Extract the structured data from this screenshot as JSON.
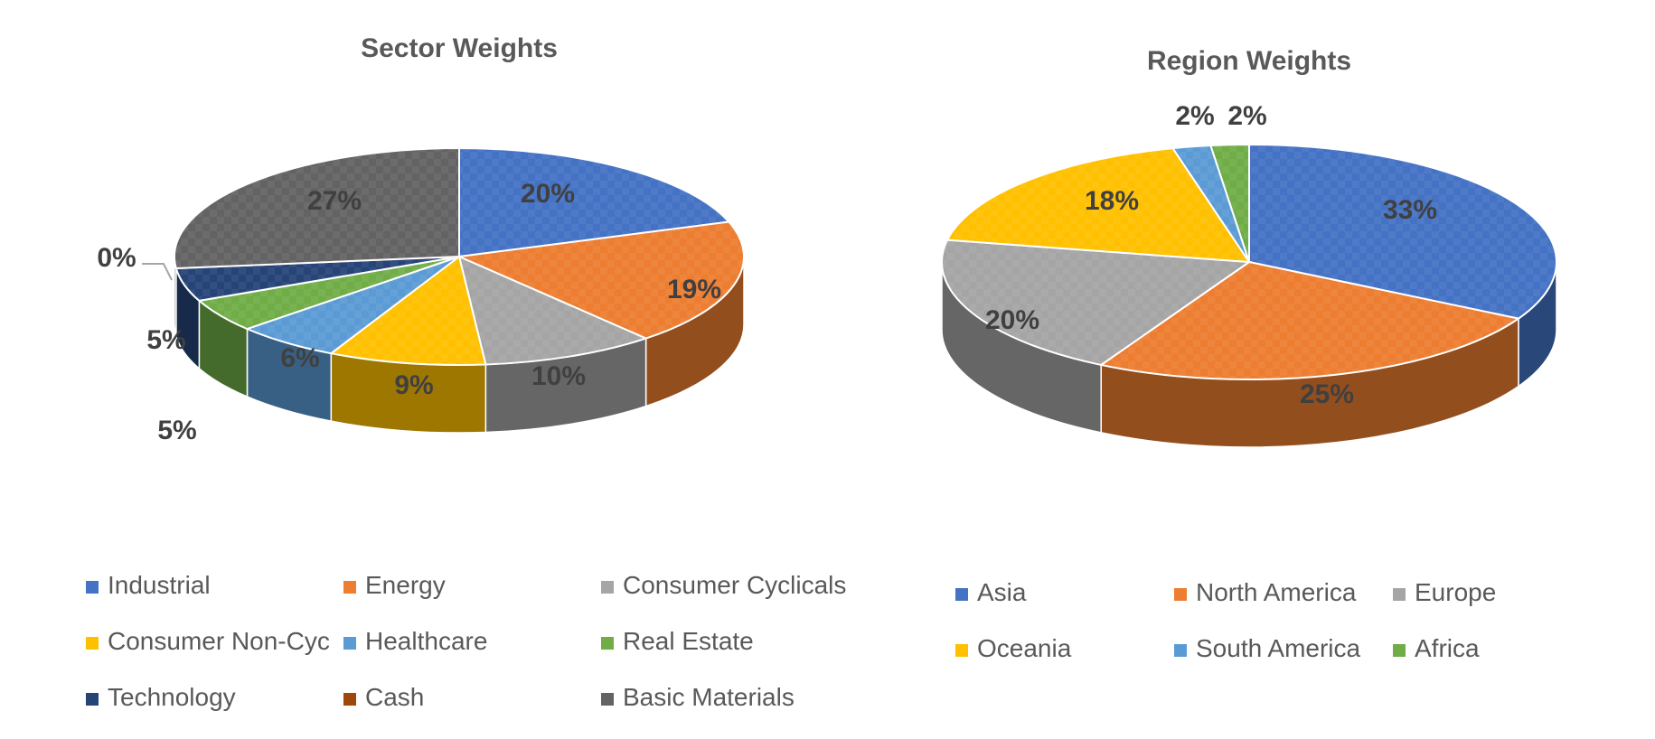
{
  "chart_data": [
    {
      "type": "pie",
      "title": "Sector Weights",
      "categories": [
        "Industrial",
        "Energy",
        "Consumer Cyclicals",
        "Consumer Non-Cyc",
        "Healthcare",
        "Real Estate",
        "Technology",
        "Cash",
        "Basic Materials"
      ],
      "values": [
        20,
        19,
        10,
        9,
        6,
        5,
        5,
        0,
        27
      ],
      "data_labels": [
        "20%",
        "19%",
        "10%",
        "9%",
        "6%",
        "5%",
        "5%",
        "0%",
        "27%"
      ],
      "colors": [
        "#4472C4",
        "#ED7D31",
        "#A5A5A5",
        "#FFC000",
        "#5B9BD5",
        "#70AD47",
        "#264478",
        "#9E480E",
        "#636363"
      ],
      "legend_position": "bottom",
      "style": "3d"
    },
    {
      "type": "pie",
      "title": "Region Weights",
      "categories": [
        "Asia",
        "North America",
        "Europe",
        "Oceania",
        "South America",
        "Africa"
      ],
      "values": [
        33,
        25,
        20,
        18,
        2,
        2
      ],
      "data_labels": [
        "33%",
        "25%",
        "20%",
        "18%",
        "2%",
        "2%"
      ],
      "colors": [
        "#4472C4",
        "#ED7D31",
        "#A5A5A5",
        "#FFC000",
        "#5B9BD5",
        "#70AD47"
      ],
      "legend_position": "bottom",
      "style": "3d"
    }
  ]
}
